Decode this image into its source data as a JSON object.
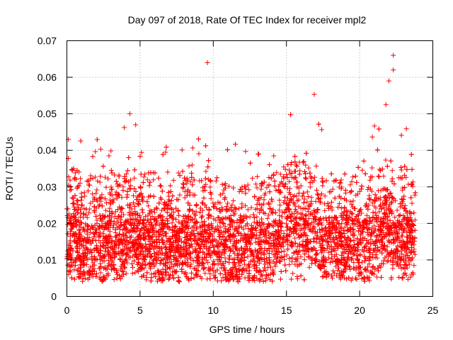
{
  "chart_data": {
    "type": "scatter",
    "title": "Day 097 of 2018, Rate Of TEC Index for receiver mpl2",
    "xlabel": "GPS time / hours",
    "ylabel": "ROTI / TECUs",
    "xlim": [
      0,
      25
    ],
    "ylim": [
      0,
      0.07
    ],
    "xticks": [
      0,
      5,
      10,
      15,
      20,
      25
    ],
    "xtick_labels": [
      "0",
      "5",
      "10",
      "15",
      "20",
      "25"
    ],
    "yticks": [
      0,
      0.01,
      0.02,
      0.03,
      0.04,
      0.05,
      0.06,
      0.07
    ],
    "ytick_labels": [
      "0",
      "0.01",
      "0.02",
      "0.03",
      "0.04",
      "0.05",
      "0.06",
      "0.07"
    ],
    "grid": true,
    "marker": "+",
    "series": [
      {
        "name": "ROTI",
        "color": "#ff0000",
        "x_range": [
          0,
          23.8
        ],
        "typical_y_range": [
          0.005,
          0.03
        ],
        "notable_points": [
          {
            "x": 9.6,
            "y": 0.064
          },
          {
            "x": 22.3,
            "y": 0.066
          },
          {
            "x": 22.3,
            "y": 0.062
          },
          {
            "x": 22.0,
            "y": 0.059
          },
          {
            "x": 16.9,
            "y": 0.0553
          },
          {
            "x": 21.8,
            "y": 0.0525
          },
          {
            "x": 4.3,
            "y": 0.05
          },
          {
            "x": 0.1,
            "y": 0.043
          },
          {
            "x": 4.7,
            "y": 0.047
          }
        ],
        "activity_profile": [
          {
            "x": 0.0,
            "y": 0.016
          },
          {
            "x": 0.5,
            "y": 0.015
          },
          {
            "x": 1.0,
            "y": 0.013
          },
          {
            "x": 1.5,
            "y": 0.012
          },
          {
            "x": 2.0,
            "y": 0.013
          },
          {
            "x": 2.5,
            "y": 0.013
          },
          {
            "x": 3.0,
            "y": 0.015
          },
          {
            "x": 3.5,
            "y": 0.014
          },
          {
            "x": 4.0,
            "y": 0.016
          },
          {
            "x": 4.5,
            "y": 0.017
          },
          {
            "x": 5.0,
            "y": 0.014
          },
          {
            "x": 5.5,
            "y": 0.015
          },
          {
            "x": 6.0,
            "y": 0.014
          },
          {
            "x": 6.5,
            "y": 0.013
          },
          {
            "x": 7.0,
            "y": 0.013
          },
          {
            "x": 7.5,
            "y": 0.013
          },
          {
            "x": 8.0,
            "y": 0.014
          },
          {
            "x": 8.5,
            "y": 0.014
          },
          {
            "x": 9.0,
            "y": 0.014
          },
          {
            "x": 9.5,
            "y": 0.016
          },
          {
            "x": 10.0,
            "y": 0.014
          },
          {
            "x": 10.5,
            "y": 0.013
          },
          {
            "x": 11.0,
            "y": 0.012
          },
          {
            "x": 11.5,
            "y": 0.012
          },
          {
            "x": 12.0,
            "y": 0.012
          },
          {
            "x": 12.5,
            "y": 0.012
          },
          {
            "x": 13.0,
            "y": 0.013
          },
          {
            "x": 13.5,
            "y": 0.013
          },
          {
            "x": 14.0,
            "y": 0.014
          },
          {
            "x": 14.5,
            "y": 0.015
          },
          {
            "x": 15.0,
            "y": 0.018
          },
          {
            "x": 15.5,
            "y": 0.019
          },
          {
            "x": 16.0,
            "y": 0.018
          },
          {
            "x": 16.5,
            "y": 0.017
          },
          {
            "x": 17.0,
            "y": 0.016
          },
          {
            "x": 17.5,
            "y": 0.015
          },
          {
            "x": 18.0,
            "y": 0.015
          },
          {
            "x": 18.5,
            "y": 0.014
          },
          {
            "x": 19.0,
            "y": 0.014
          },
          {
            "x": 19.5,
            "y": 0.013
          },
          {
            "x": 20.0,
            "y": 0.014
          },
          {
            "x": 20.5,
            "y": 0.015
          },
          {
            "x": 21.0,
            "y": 0.016
          },
          {
            "x": 21.5,
            "y": 0.018
          },
          {
            "x": 22.0,
            "y": 0.018
          },
          {
            "x": 22.5,
            "y": 0.016
          },
          {
            "x": 23.0,
            "y": 0.016
          },
          {
            "x": 23.5,
            "y": 0.015
          }
        ]
      }
    ]
  }
}
